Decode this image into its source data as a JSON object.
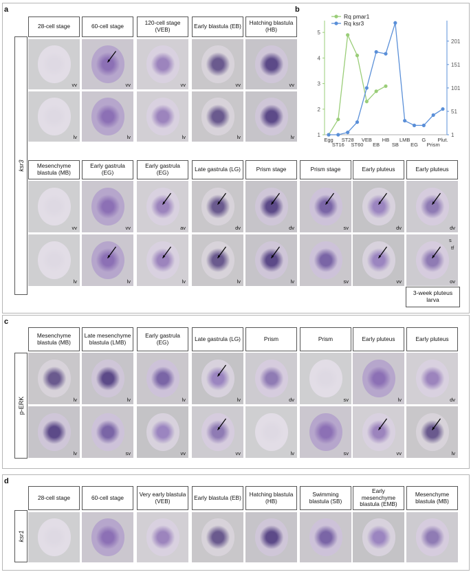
{
  "panels": {
    "a": "a",
    "b": "b",
    "c": "c",
    "d": "d"
  },
  "panel_a": {
    "gene_label": "ksr3",
    "top_headers": [
      "28-cell stage",
      "60-cell stage",
      "120-cell stage (VEB)",
      "Early blastula (EB)",
      "Hatching blastula (HB)"
    ],
    "top_row1_tags": [
      "vv",
      "vv",
      "vv",
      "vv",
      "vv"
    ],
    "top_row2_tags": [
      "lv",
      "lv",
      "lv",
      "lv",
      "lv"
    ],
    "bottom_headers": [
      "Mesenchyme blastula (MB)",
      "Early gastrula (EG)",
      "Early gastrula (EG)",
      "Late gastrula (LG)",
      "Prism stage",
      "Prism stage",
      "Early pluteus",
      "Early pluteus"
    ],
    "bottom_row1_tags": [
      "vv",
      "vv",
      "av",
      "dv",
      "dv",
      "sv",
      "dv",
      "dv"
    ],
    "bottom_row2_tags": [
      "lv",
      "lv",
      "lv",
      "lv",
      "lv",
      "sv",
      "vv",
      "ov"
    ],
    "footer_box": "3-week pluteus larva",
    "inset_labels": [
      "s",
      "tf"
    ]
  },
  "panel_c": {
    "row_label": "p-ERK",
    "headers": [
      "Mesenchyme blastula (MB)",
      "Late mesenchyme blastula (LMB)",
      "Early gastrula (EG)",
      "Late gastrula (LG)",
      "Prism",
      "Prism",
      "Early pluteus",
      "Early pluteus"
    ],
    "row1_tags": [
      "lv",
      "lv",
      "lv",
      "lv",
      "dv",
      "sv",
      "lv",
      "dv"
    ],
    "row2_tags": [
      "lv",
      "sv",
      "vv",
      "vv",
      "lv",
      "sv",
      "vv",
      "lv"
    ]
  },
  "panel_d": {
    "gene_label": "ksr1",
    "headers": [
      "28-cell stage",
      "60-cell stage",
      "Very early blastula (VEB)",
      "Early blastula (EB)",
      "Hatching blastula (HB)",
      "Swimming blastula (SB)",
      "Early mesenchyme blastula (EMB)",
      "Mesenchyme blastula (MB)"
    ]
  },
  "chart_data": {
    "type": "line",
    "categories": [
      "Egg",
      "ST16",
      "ST28",
      "ST60",
      "VEB",
      "EB",
      "HB",
      "SB",
      "LMB",
      "EG",
      "G",
      "Prism",
      "Plut."
    ],
    "series": [
      {
        "name": "Rq pmar1",
        "axis": "left",
        "color": "#9acd78",
        "values": [
          1.0,
          1.6,
          4.9,
          4.1,
          2.3,
          2.7,
          2.9,
          null,
          null,
          null,
          null,
          null,
          null
        ]
      },
      {
        "name": "Rq ksr3",
        "axis": "right",
        "color": "#5a8fd8",
        "values": [
          1,
          1,
          6,
          28,
          101,
          178,
          174,
          240,
          31,
          21,
          21,
          43,
          56
        ]
      }
    ],
    "legend": [
      "Rq pmar1",
      "Rq ksr3"
    ],
    "legend_italic_part": [
      "pmar1",
      "ksr3"
    ],
    "y_left": {
      "ticks": [
        "1",
        "2",
        "3",
        "4",
        "5"
      ],
      "ylim": [
        1,
        5.3
      ],
      "color": "#9acd78"
    },
    "y_right": {
      "ticks": [
        "1",
        "51",
        "101",
        "151",
        "201"
      ],
      "ylim": [
        1,
        236
      ],
      "color": "#5a8fd8"
    },
    "legend_position": "top-left"
  }
}
